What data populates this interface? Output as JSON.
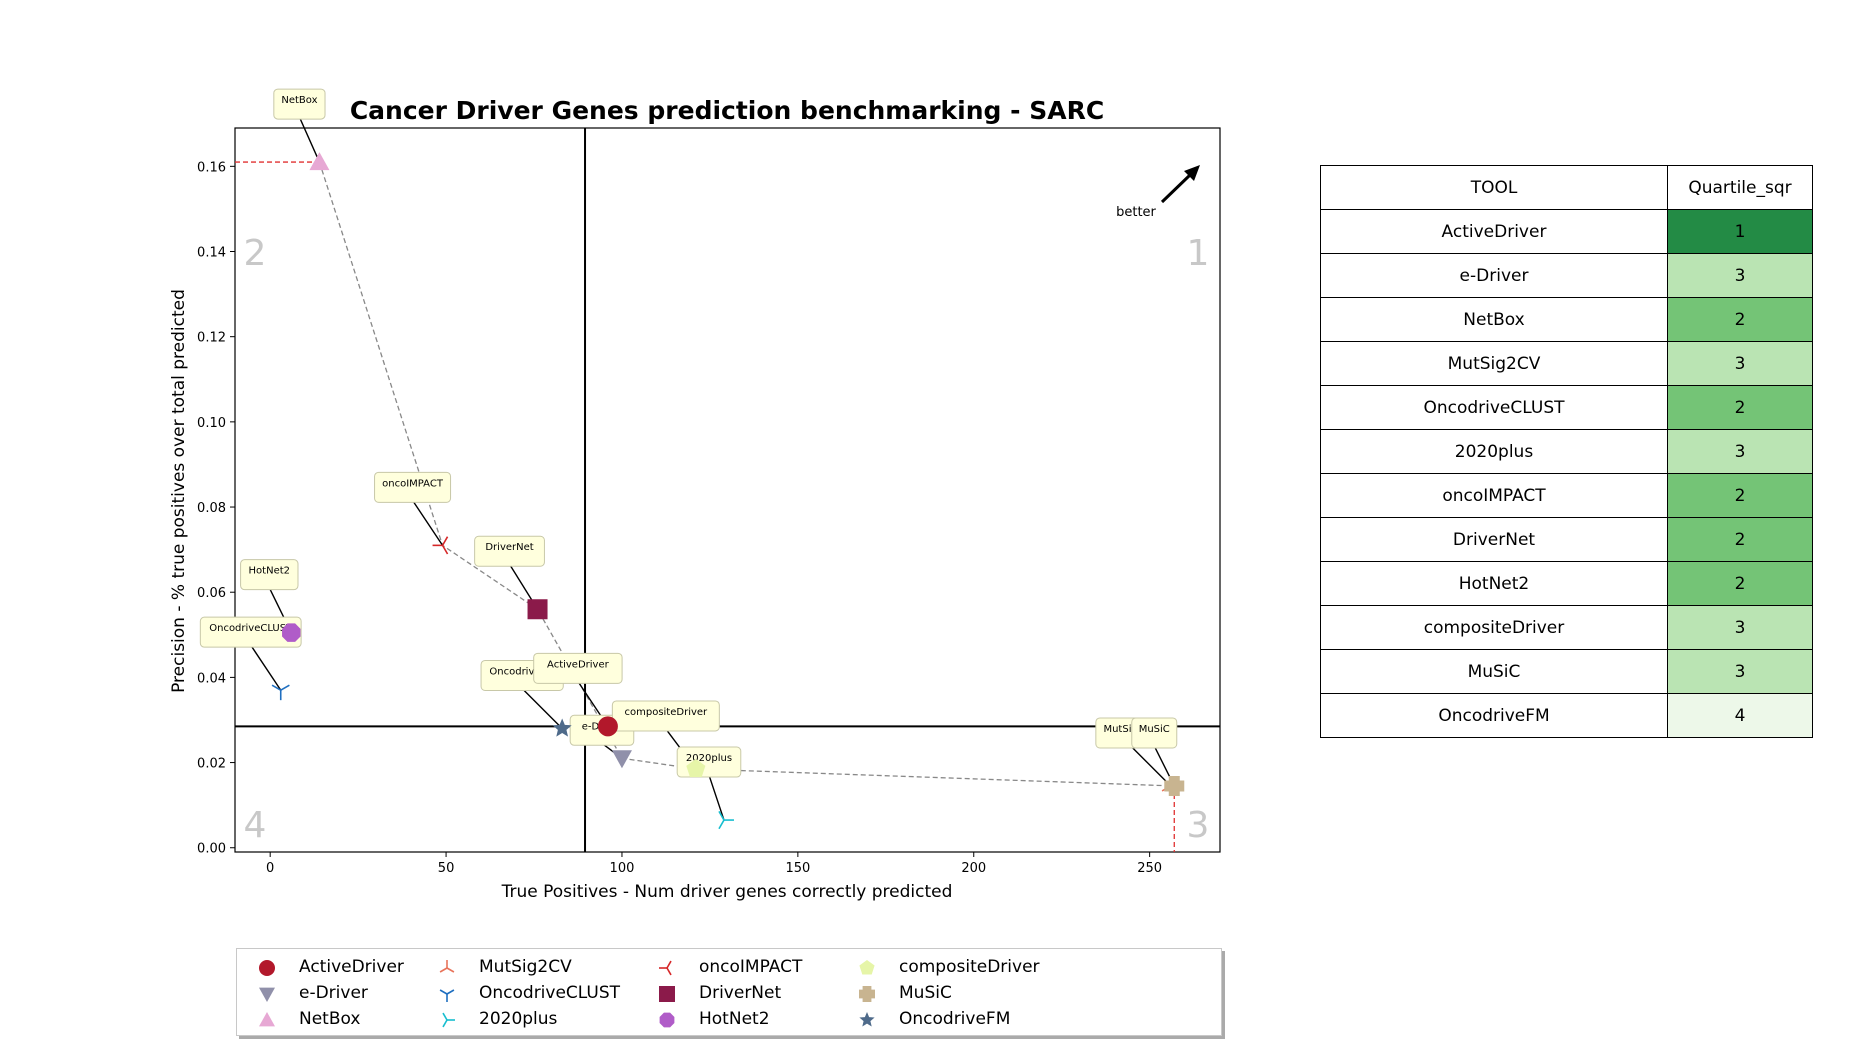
{
  "chart_data": {
    "type": "scatter",
    "title": "Cancer Driver Genes prediction benchmarking - SARC",
    "xlabel": "True Positives - Num driver genes correctly predicted",
    "ylabel": "Precision - % true positives over total predicted",
    "xlim": [
      -10,
      270
    ],
    "ylim": [
      -0.001,
      0.169
    ],
    "xticks": [
      0,
      50,
      100,
      150,
      200,
      250
    ],
    "yticks": [
      0.0,
      0.02,
      0.04,
      0.06,
      0.08,
      0.1,
      0.12,
      0.14,
      0.16
    ],
    "xtick_labels": [
      "0",
      "50",
      "100",
      "150",
      "200",
      "250"
    ],
    "ytick_labels": [
      "0.00",
      "0.02",
      "0.04",
      "0.06",
      "0.08",
      "0.10",
      "0.12",
      "0.14",
      "0.16"
    ],
    "quadrant_lines": {
      "x": 89.5,
      "y": 0.0285
    },
    "quadrant_labels": [
      "1",
      "2",
      "3",
      "4"
    ],
    "better_label": "better",
    "grid": false,
    "legend_placement": "bottom",
    "series": [
      {
        "name": "ActiveDriver",
        "x": 96,
        "y": 0.0285,
        "marker": "circle",
        "color": "#b2182b"
      },
      {
        "name": "e-Driver",
        "x": 100,
        "y": 0.021,
        "marker": "triangle-down",
        "color": "#9090aa"
      },
      {
        "name": "NetBox",
        "x": 14,
        "y": 0.161,
        "marker": "triangle-up",
        "color": "#e7a8d4"
      },
      {
        "name": "MutSig2CV",
        "x": 256,
        "y": 0.0145,
        "marker": "tri-down",
        "color": "#e8735a"
      },
      {
        "name": "OncodriveCLUST",
        "x": 3,
        "y": 0.037,
        "marker": "tri-up",
        "color": "#1f6fc0"
      },
      {
        "name": "2020plus",
        "x": 129,
        "y": 0.0065,
        "marker": "tri-left",
        "color": "#17becf"
      },
      {
        "name": "oncoIMPACT",
        "x": 49,
        "y": 0.071,
        "marker": "tri-right",
        "color": "#d62728"
      },
      {
        "name": "DriverNet",
        "x": 76,
        "y": 0.056,
        "marker": "square",
        "color": "#8b1a4a"
      },
      {
        "name": "HotNet2",
        "x": 6,
        "y": 0.0505,
        "marker": "octagon",
        "color": "#b05cc8"
      },
      {
        "name": "compositeDriver",
        "x": 121,
        "y": 0.0185,
        "marker": "pentagon",
        "color": "#e6f5a8"
      },
      {
        "name": "MuSiC",
        "x": 257,
        "y": 0.0145,
        "marker": "plus",
        "color": "#c8b490"
      },
      {
        "name": "OncodriveFM",
        "x": 83,
        "y": 0.028,
        "marker": "star",
        "color": "#4e6a8a"
      }
    ],
    "pareto_frontier": [
      [
        14,
        0.161
      ],
      [
        49,
        0.071
      ],
      [
        76,
        0.056
      ],
      [
        100,
        0.021
      ],
      [
        121,
        0.0185
      ],
      [
        257,
        0.0145
      ]
    ],
    "callouts": [
      {
        "text": "NetBox",
        "target": [
          14,
          0.161
        ]
      },
      {
        "text": "oncoIMPACT",
        "target": [
          49,
          0.071
        ]
      },
      {
        "text": "DriverNet",
        "target": [
          76,
          0.056
        ]
      },
      {
        "text": "HotNet2",
        "target": [
          6,
          0.0505
        ]
      },
      {
        "text": "OncodriveCLUST",
        "target": [
          3,
          0.037
        ]
      },
      {
        "text": "OncodriveFM",
        "target": [
          83,
          0.028
        ]
      },
      {
        "text": "ActiveDriver",
        "target": [
          96,
          0.0285
        ]
      },
      {
        "text": "e-Driver",
        "target": [
          100,
          0.021
        ]
      },
      {
        "text": "compositeDriver",
        "target": [
          121,
          0.0185
        ]
      },
      {
        "text": "2020plus",
        "target": [
          129,
          0.0065
        ]
      },
      {
        "text": "MutSig2CV",
        "target": [
          256,
          0.0145
        ]
      },
      {
        "text": "MuSiC",
        "target": [
          257,
          0.0145
        ]
      }
    ]
  },
  "table": {
    "headers": [
      "TOOL",
      "Quartile_sqr"
    ],
    "rows": [
      {
        "tool": "ActiveDriver",
        "q": "1",
        "color": "#238b45"
      },
      {
        "tool": "e-Driver",
        "q": "3",
        "color": "#bae4b3"
      },
      {
        "tool": "NetBox",
        "q": "2",
        "color": "#74c476"
      },
      {
        "tool": "MutSig2CV",
        "q": "3",
        "color": "#bae4b3"
      },
      {
        "tool": "OncodriveCLUST",
        "q": "2",
        "color": "#74c476"
      },
      {
        "tool": "2020plus",
        "q": "3",
        "color": "#bae4b3"
      },
      {
        "tool": "oncoIMPACT",
        "q": "2",
        "color": "#74c476"
      },
      {
        "tool": "DriverNet",
        "q": "2",
        "color": "#74c476"
      },
      {
        "tool": "HotNet2",
        "q": "2",
        "color": "#74c476"
      },
      {
        "tool": "compositeDriver",
        "q": "3",
        "color": "#bae4b3"
      },
      {
        "tool": "MuSiC",
        "q": "3",
        "color": "#bae4b3"
      },
      {
        "tool": "OncodriveFM",
        "q": "4",
        "color": "#edf8e9"
      }
    ]
  }
}
